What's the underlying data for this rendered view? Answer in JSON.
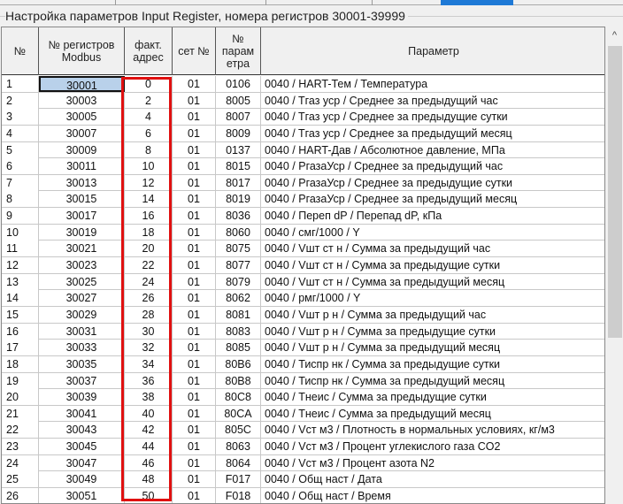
{
  "title": "Настройка параметров Input Register, номера регистров 30001-39999",
  "columns": {
    "num": "№",
    "reg": "№ регистров Modbus",
    "fact": "факт. адрес",
    "set": "сет №",
    "param_no": "№ парам етра",
    "param": "Параметр"
  },
  "colors": {
    "selection": "#b9d1ea",
    "highlight_box": "#e01010",
    "tab_selected": "#1e79d6"
  },
  "scrollbar": {
    "up_icon": "chevron-up-icon"
  },
  "rows": [
    [
      "1",
      "30001",
      "0",
      "01",
      "0106",
      "0040 / HART-Тем / Температура"
    ],
    [
      "2",
      "30003",
      "2",
      "01",
      "8005",
      "0040 / Tгаз уср / Среднее за предыдущий час"
    ],
    [
      "3",
      "30005",
      "4",
      "01",
      "8007",
      "0040 / Tгаз уср / Среднее за предыдущие сутки"
    ],
    [
      "4",
      "30007",
      "6",
      "01",
      "8009",
      "0040 / Tгаз уср / Среднее за предыдущий месяц"
    ],
    [
      "5",
      "30009",
      "8",
      "01",
      "0137",
      "0040 / HART-Дав / Абсолютное давление, МПа"
    ],
    [
      "6",
      "30011",
      "10",
      "01",
      "8015",
      "0040 / PгазаУср / Среднее за предыдущий час"
    ],
    [
      "7",
      "30013",
      "12",
      "01",
      "8017",
      "0040 / PгазаУср / Среднее за предыдущие сутки"
    ],
    [
      "8",
      "30015",
      "14",
      "01",
      "8019",
      "0040 / PгазаУср / Среднее за предыдущий месяц"
    ],
    [
      "9",
      "30017",
      "16",
      "01",
      "8036",
      "0040 / Переп dP / Перепад dP, кПа"
    ],
    [
      "10",
      "30019",
      "18",
      "01",
      "8060",
      "0040 / смг/1000 / Y"
    ],
    [
      "11",
      "30021",
      "20",
      "01",
      "8075",
      "0040 / Vшт ст н / Сумма за предыдущий час"
    ],
    [
      "12",
      "30023",
      "22",
      "01",
      "8077",
      "0040 / Vшт ст н / Сумма за предыдущие сутки"
    ],
    [
      "13",
      "30025",
      "24",
      "01",
      "8079",
      "0040 / Vшт ст н / Сумма за предыдущий месяц"
    ],
    [
      "14",
      "30027",
      "26",
      "01",
      "8062",
      "0040 / рмг/1000 / Y"
    ],
    [
      "15",
      "30029",
      "28",
      "01",
      "8081",
      "0040 / Vшт р н  / Сумма за предыдущий час"
    ],
    [
      "16",
      "30031",
      "30",
      "01",
      "8083",
      "0040 / Vшт р н  / Сумма за предыдущие сутки"
    ],
    [
      "17",
      "30033",
      "32",
      "01",
      "8085",
      "0040 / Vшт р н  / Сумма за предыдущий месяц"
    ],
    [
      "18",
      "30035",
      "34",
      "01",
      "80B6",
      "0040 / Тиспр нк / Сумма за предыдущие сутки"
    ],
    [
      "19",
      "30037",
      "36",
      "01",
      "80B8",
      "0040 / Тиспр нк / Сумма за предыдущий месяц"
    ],
    [
      "20",
      "30039",
      "38",
      "01",
      "80C8",
      "0040 / Тнеис    / Сумма за предыдущие сутки"
    ],
    [
      "21",
      "30041",
      "40",
      "01",
      "80CA",
      "0040 / Тнеис    / Сумма за предыдущий месяц"
    ],
    [
      "22",
      "30043",
      "42",
      "01",
      "805C",
      "0040 / Vст м3   / Плотность в нормальных условиях, кг/м3"
    ],
    [
      "23",
      "30045",
      "44",
      "01",
      "8063",
      "0040 / Vст м3   / Процент углекислого газа CO2"
    ],
    [
      "24",
      "30047",
      "46",
      "01",
      "8064",
      "0040 / Vст м3   / Процент азота N2"
    ],
    [
      "25",
      "30049",
      "48",
      "01",
      "F017",
      "0040 / Общ наст / Дата"
    ],
    [
      "26",
      "30051",
      "50",
      "01",
      "F018",
      "0040 / Общ наст / Время"
    ]
  ]
}
